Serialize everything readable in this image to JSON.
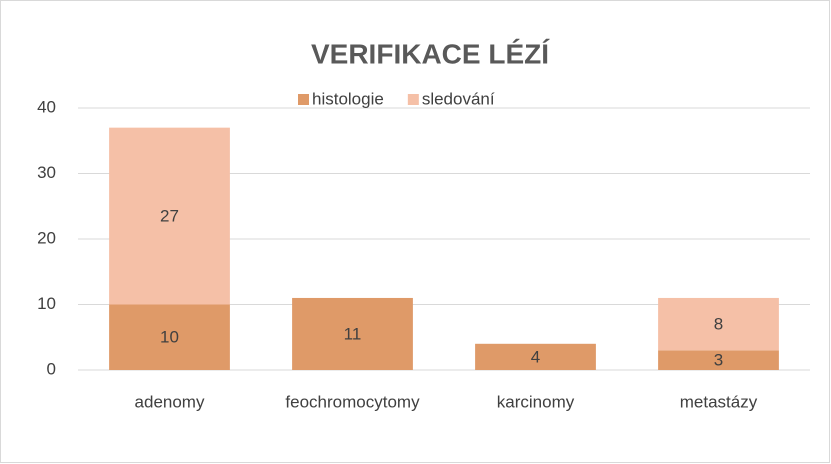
{
  "chart_data": {
    "type": "stacked_bar",
    "title": "VERIFIKACE LÉZÍ",
    "categories": [
      "adenomy",
      "feochromocytomy",
      "karcinomy",
      "metastázy"
    ],
    "series": [
      {
        "name": "histologie",
        "color": "#df9a68",
        "values": [
          10,
          11,
          4,
          3
        ]
      },
      {
        "name": "sledování",
        "color": "#f5c0a7",
        "values": [
          27,
          null,
          null,
          8
        ]
      }
    ],
    "ylim": [
      0,
      40
    ],
    "yticks": [
      0,
      10,
      20,
      30,
      40
    ],
    "grid": true,
    "legend": "top"
  }
}
